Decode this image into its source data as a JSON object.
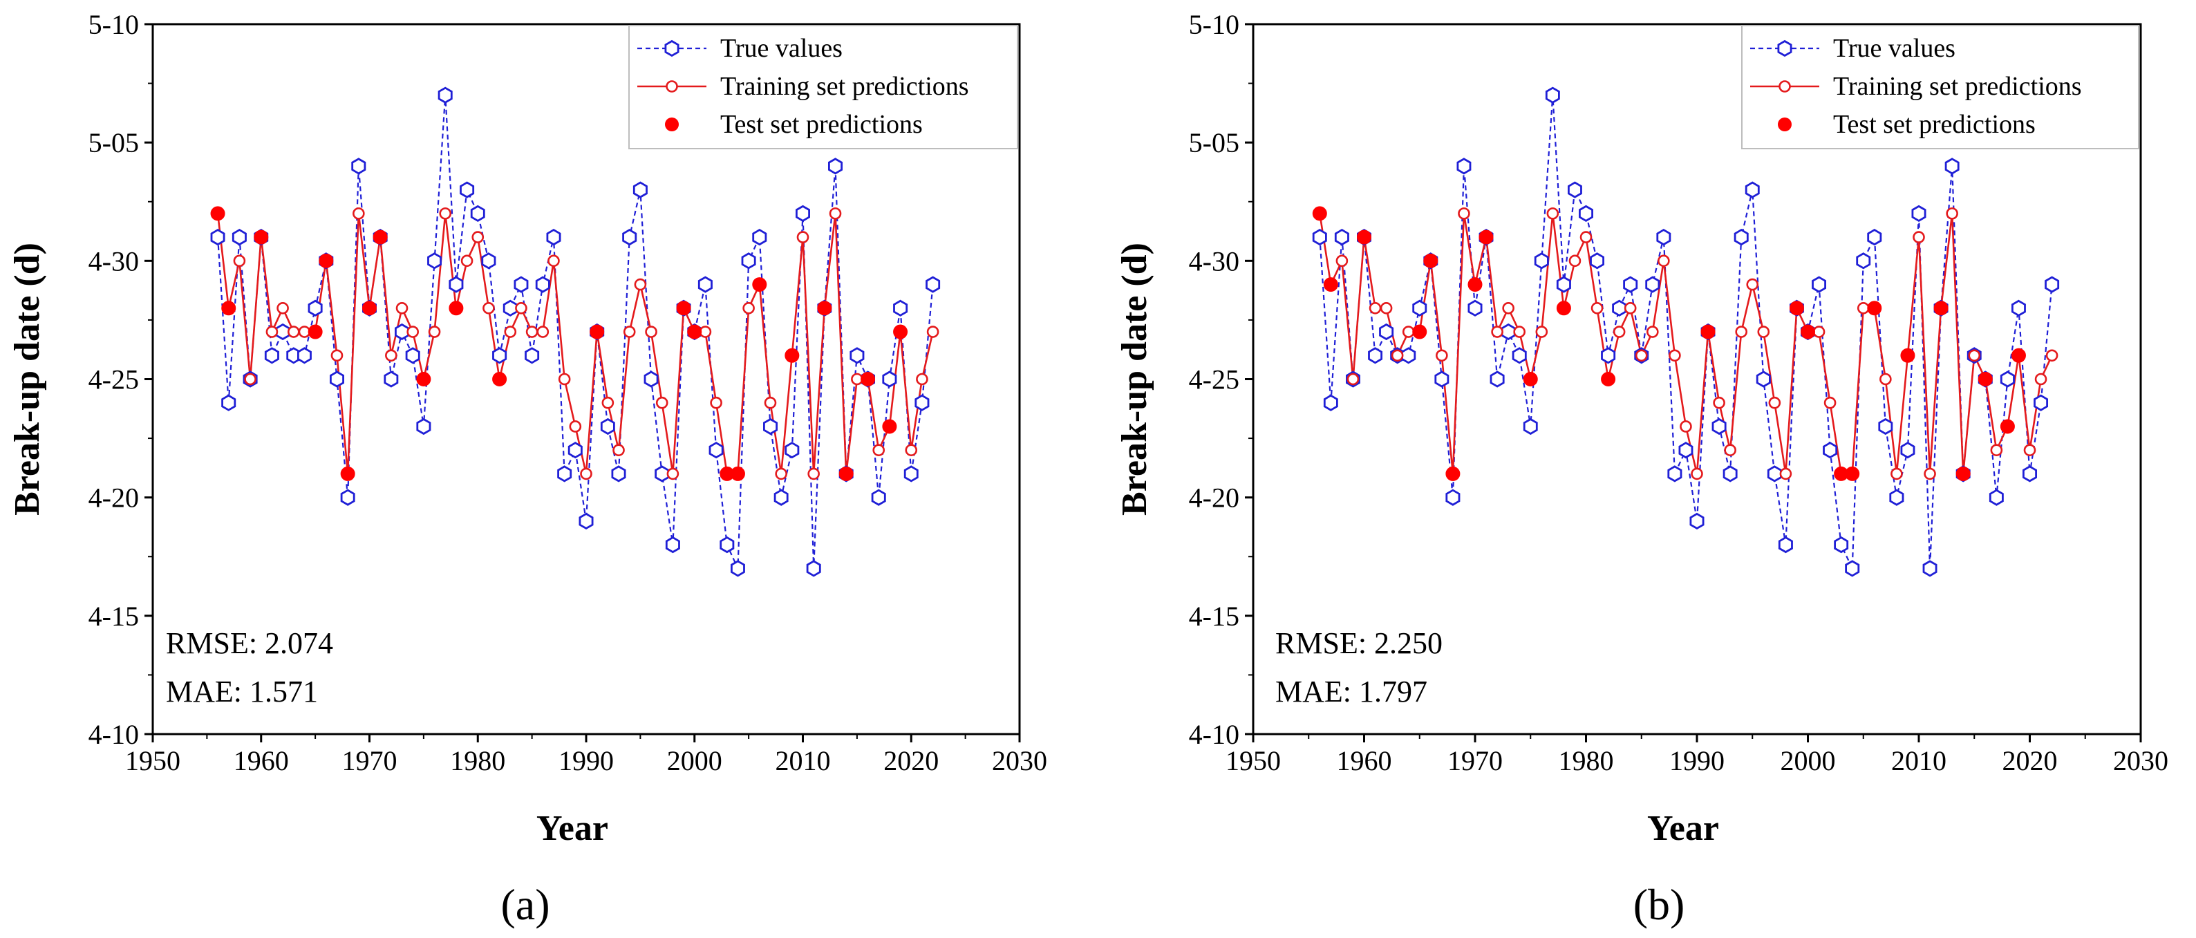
{
  "chart_data": [
    {
      "type": "line",
      "panel_label": "(a)",
      "xlabel": "Year",
      "ylabel": "Break-up date (d)",
      "xlim": [
        1950,
        2030
      ],
      "xticks": [
        1950,
        1960,
        1970,
        1980,
        1990,
        2000,
        2010,
        2020,
        2030
      ],
      "ylim": [
        10,
        40
      ],
      "yticks": [
        10,
        15,
        20,
        25,
        30,
        35,
        40
      ],
      "ytick_labels": [
        "4-10",
        "4-15",
        "4-20",
        "4-25",
        "4-30",
        "5-05",
        "5-10"
      ],
      "y_unit": "days after 31 March (4-10 = 10, 5-05 = 35)",
      "legend_position": "top-right",
      "grid": false,
      "metrics": {
        "rmse": "RMSE: 2.074",
        "mae": "MAE: 1.571"
      },
      "series": [
        {
          "name": "True values",
          "style": "dashed line with hollow hexagon markers",
          "color": "#1f1fd6",
          "x": [
            1956,
            1957,
            1958,
            1959,
            1960,
            1961,
            1962,
            1963,
            1964,
            1965,
            1966,
            1967,
            1968,
            1969,
            1970,
            1971,
            1972,
            1973,
            1974,
            1975,
            1976,
            1977,
            1978,
            1979,
            1980,
            1981,
            1982,
            1983,
            1984,
            1985,
            1986,
            1987,
            1988,
            1989,
            1990,
            1991,
            1992,
            1993,
            1994,
            1995,
            1996,
            1997,
            1998,
            1999,
            2000,
            2001,
            2002,
            2003,
            2004,
            2005,
            2006,
            2007,
            2008,
            2009,
            2010,
            2011,
            2012,
            2013,
            2014,
            2015,
            2016,
            2017,
            2018,
            2019,
            2020,
            2021,
            2022
          ],
          "y": [
            31,
            24,
            31,
            25,
            31,
            26,
            27,
            26,
            26,
            28,
            30,
            25,
            20,
            34,
            28,
            31,
            25,
            27,
            26,
            23,
            30,
            37,
            29,
            33,
            32,
            30,
            26,
            28,
            29,
            26,
            29,
            31,
            21,
            22,
            19,
            27,
            23,
            21,
            31,
            33,
            25,
            21,
            18,
            28,
            27,
            29,
            22,
            18,
            17,
            30,
            31,
            23,
            20,
            22,
            32,
            17,
            28,
            34,
            21,
            26,
            25,
            20,
            25,
            28,
            21,
            24,
            29
          ]
        },
        {
          "name": "Training set predictions",
          "style": "solid line with hollow circle markers",
          "color": "#e41a1c",
          "x": [
            1956,
            1957,
            1958,
            1959,
            1960,
            1961,
            1962,
            1963,
            1964,
            1965,
            1966,
            1967,
            1968,
            1969,
            1970,
            1971,
            1972,
            1973,
            1974,
            1975,
            1976,
            1977,
            1978,
            1979,
            1980,
            1981,
            1982,
            1983,
            1984,
            1985,
            1986,
            1987,
            1988,
            1989,
            1990,
            1991,
            1992,
            1993,
            1994,
            1995,
            1996,
            1997,
            1998,
            1999,
            2000,
            2001,
            2002,
            2003,
            2004,
            2005,
            2006,
            2007,
            2008,
            2009,
            2010,
            2011,
            2012,
            2013,
            2014,
            2015,
            2016,
            2017,
            2018,
            2019,
            2020,
            2021,
            2022
          ],
          "y": [
            32,
            28,
            30,
            25,
            31,
            27,
            28,
            27,
            27,
            27,
            30,
            26,
            21,
            32,
            28,
            31,
            26,
            28,
            27,
            25,
            27,
            32,
            28,
            30,
            31,
            28,
            25,
            27,
            28,
            27,
            27,
            30,
            25,
            23,
            21,
            27,
            24,
            22,
            27,
            29,
            27,
            24,
            21,
            28,
            27,
            27,
            24,
            21,
            21,
            28,
            29,
            24,
            21,
            26,
            31,
            21,
            28,
            32,
            21,
            25,
            25,
            22,
            23,
            27,
            22,
            25,
            27
          ]
        },
        {
          "name": "Test set predictions",
          "style": "filled circle markers only",
          "color": "#ff0000",
          "x": [
            1956,
            1957,
            1960,
            1965,
            1966,
            1968,
            1970,
            1971,
            1975,
            1978,
            1982,
            1991,
            1999,
            2000,
            2003,
            2004,
            2006,
            2009,
            2012,
            2014,
            2016,
            2018,
            2019
          ],
          "y": [
            32,
            28,
            31,
            27,
            30,
            21,
            28,
            31,
            25,
            28,
            25,
            27,
            28,
            27,
            21,
            21,
            29,
            26,
            28,
            21,
            25,
            23,
            27
          ]
        }
      ]
    },
    {
      "type": "line",
      "panel_label": "(b)",
      "xlabel": "Year",
      "ylabel": "Break-up date (d)",
      "xlim": [
        1950,
        2030
      ],
      "xticks": [
        1950,
        1960,
        1970,
        1980,
        1990,
        2000,
        2010,
        2020,
        2030
      ],
      "ylim": [
        10,
        40
      ],
      "yticks": [
        10,
        15,
        20,
        25,
        30,
        35,
        40
      ],
      "ytick_labels": [
        "4-10",
        "4-15",
        "4-20",
        "4-25",
        "4-30",
        "5-05",
        "5-10"
      ],
      "y_unit": "days after 31 March (4-10 = 10, 5-05 = 35)",
      "legend_position": "top-right",
      "grid": false,
      "metrics": {
        "rmse": "RMSE: 2.250",
        "mae": "MAE: 1.797"
      },
      "series": [
        {
          "name": "True values",
          "style": "dashed line with hollow hexagon markers",
          "color": "#1f1fd6",
          "x": [
            1956,
            1957,
            1958,
            1959,
            1960,
            1961,
            1962,
            1963,
            1964,
            1965,
            1966,
            1967,
            1968,
            1969,
            1970,
            1971,
            1972,
            1973,
            1974,
            1975,
            1976,
            1977,
            1978,
            1979,
            1980,
            1981,
            1982,
            1983,
            1984,
            1985,
            1986,
            1987,
            1988,
            1989,
            1990,
            1991,
            1992,
            1993,
            1994,
            1995,
            1996,
            1997,
            1998,
            1999,
            2000,
            2001,
            2002,
            2003,
            2004,
            2005,
            2006,
            2007,
            2008,
            2009,
            2010,
            2011,
            2012,
            2013,
            2014,
            2015,
            2016,
            2017,
            2018,
            2019,
            2020,
            2021,
            2022
          ],
          "y": [
            31,
            24,
            31,
            25,
            31,
            26,
            27,
            26,
            26,
            28,
            30,
            25,
            20,
            34,
            28,
            31,
            25,
            27,
            26,
            23,
            30,
            37,
            29,
            33,
            32,
            30,
            26,
            28,
            29,
            26,
            29,
            31,
            21,
            22,
            19,
            27,
            23,
            21,
            31,
            33,
            25,
            21,
            18,
            28,
            27,
            29,
            22,
            18,
            17,
            30,
            31,
            23,
            20,
            22,
            32,
            17,
            28,
            34,
            21,
            26,
            25,
            20,
            25,
            28,
            21,
            24,
            29
          ]
        },
        {
          "name": "Training set predictions",
          "style": "solid line with hollow circle markers",
          "color": "#e41a1c",
          "x": [
            1956,
            1957,
            1958,
            1959,
            1960,
            1961,
            1962,
            1963,
            1964,
            1965,
            1966,
            1967,
            1968,
            1969,
            1970,
            1971,
            1972,
            1973,
            1974,
            1975,
            1976,
            1977,
            1978,
            1979,
            1980,
            1981,
            1982,
            1983,
            1984,
            1985,
            1986,
            1987,
            1988,
            1989,
            1990,
            1991,
            1992,
            1993,
            1994,
            1995,
            1996,
            1997,
            1998,
            1999,
            2000,
            2001,
            2002,
            2003,
            2004,
            2005,
            2006,
            2007,
            2008,
            2009,
            2010,
            2011,
            2012,
            2013,
            2014,
            2015,
            2016,
            2017,
            2018,
            2019,
            2020,
            2021,
            2022
          ],
          "y": [
            32,
            29,
            30,
            25,
            31,
            28,
            28,
            26,
            27,
            27,
            30,
            26,
            21,
            32,
            29,
            31,
            27,
            28,
            27,
            25,
            27,
            32,
            28,
            30,
            31,
            28,
            25,
            27,
            28,
            26,
            27,
            30,
            26,
            23,
            21,
            27,
            24,
            22,
            27,
            29,
            27,
            24,
            21,
            28,
            27,
            27,
            24,
            21,
            21,
            28,
            28,
            25,
            21,
            26,
            31,
            21,
            28,
            32,
            21,
            26,
            25,
            22,
            23,
            26,
            22,
            25,
            26
          ]
        },
        {
          "name": "Test set predictions",
          "style": "filled circle markers only",
          "color": "#ff0000",
          "x": [
            1956,
            1957,
            1960,
            1965,
            1966,
            1968,
            1970,
            1971,
            1975,
            1978,
            1982,
            1991,
            1999,
            2000,
            2003,
            2004,
            2006,
            2009,
            2012,
            2014,
            2016,
            2018,
            2019
          ],
          "y": [
            32,
            29,
            31,
            27,
            30,
            21,
            29,
            31,
            25,
            28,
            25,
            27,
            28,
            27,
            21,
            21,
            28,
            26,
            28,
            21,
            25,
            23,
            26
          ]
        }
      ]
    }
  ]
}
